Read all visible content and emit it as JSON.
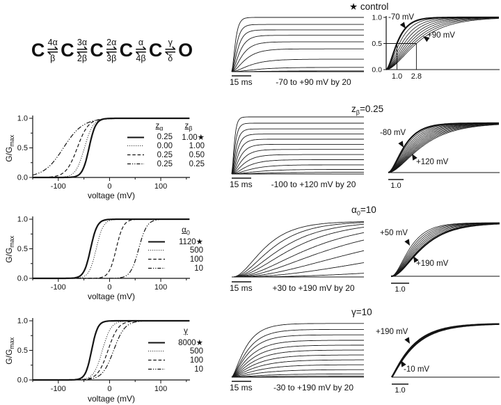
{
  "scheme": {
    "states": [
      "C",
      "C",
      "C",
      "C",
      "C",
      "O"
    ],
    "arrow": "⇌",
    "transitions": [
      {
        "top": "4α",
        "bottom": "β"
      },
      {
        "top": "3α",
        "bottom": "2β"
      },
      {
        "top": "2α",
        "bottom": "3β"
      },
      {
        "top": "α",
        "bottom": "4β"
      },
      {
        "top": "γ",
        "bottom": "δ"
      }
    ]
  },
  "chart_data": {
    "type": "line",
    "description": "Simulated channel activation for the 5-state scheme: G-V curves, current trace families, and normalized activation time courses under parameter changes",
    "rows": [
      {
        "id": "control",
        "title": {
          "base": "★ control",
          "sub": "",
          "rest": ""
        },
        "traces": {
          "scalebar": "15 ms",
          "caption": "-70 to +90 mV by 20",
          "voltages_mV": [
            -70,
            -50,
            -30,
            -10,
            10,
            30,
            50,
            70,
            90
          ],
          "amps": [
            0.015,
            0.08,
            0.23,
            0.42,
            0.55,
            0.67,
            0.77,
            0.87,
            1.0
          ],
          "taus": [
            0.22,
            0.15,
            0.11,
            0.08,
            0.06,
            0.046,
            0.035,
            0.027,
            0.021
          ],
          "power": 2
        },
        "norm": {
          "first_label": "-70 mV",
          "last_label": "+90 mV",
          "halftimes": [
            1.0,
            1.22,
            1.45,
            1.67,
            1.9,
            2.12,
            2.35,
            2.57,
            2.8
          ],
          "power": 2,
          "bold": "first",
          "yticks": [
            "0.0",
            "0.5",
            "1.0"
          ],
          "xrefs": [
            1.0,
            2.8
          ],
          "xref_labels": [
            "1.0",
            "2.8"
          ]
        }
      },
      {
        "id": "zbeta-0.25",
        "title": {
          "base": "z",
          "sub": "β",
          "rest": "=0.25"
        },
        "gv": {
          "ylabel": {
            "base": "G/G",
            "sub": "max"
          },
          "xlabel": "voltage (mV)",
          "xrange": [
            -150,
            157
          ],
          "xticks": [
            -100,
            0,
            100
          ],
          "xtick_labels": [
            "-100",
            "0",
            "100"
          ],
          "yticks": [
            0,
            0.5,
            1
          ],
          "ytick_labels": [
            "0.0",
            "0.5",
            "1.0"
          ],
          "legend": {
            "headers": [
              {
                "base": "z",
                "sub": "α"
              },
              {
                "base": "z",
                "sub": "β"
              }
            ],
            "rows": [
              {
                "style": "solid",
                "c1": "0.25",
                "c2": "1.00★"
              },
              {
                "style": "dotted",
                "c1": "0.00",
                "c2": "1.00"
              },
              {
                "style": "dashed",
                "c1": "0.25",
                "c2": "0.50"
              },
              {
                "style": "dashdot",
                "c1": "0.25",
                "c2": "0.25"
              }
            ]
          },
          "curves": [
            {
              "style": "solid",
              "bold": true,
              "vhalf": -40,
              "slope": 6.5
            },
            {
              "style": "dotted",
              "bold": false,
              "vhalf": -49,
              "slope": 8.5
            },
            {
              "style": "dashed",
              "bold": false,
              "vhalf": -63,
              "slope": 11
            },
            {
              "style": "dashdot",
              "bold": false,
              "vhalf": -90,
              "slope": 19
            }
          ]
        },
        "traces": {
          "scalebar": "15 ms",
          "caption": "-100 to +120 mV by 20",
          "voltages_mV": [
            -100,
            -80,
            -60,
            -40,
            -20,
            0,
            20,
            40,
            60,
            80,
            100,
            120
          ],
          "amps": [
            0.03,
            0.08,
            0.16,
            0.25,
            0.34,
            0.43,
            0.52,
            0.61,
            0.7,
            0.79,
            0.89,
            1.0
          ],
          "taus": [
            0.2,
            0.15,
            0.115,
            0.09,
            0.071,
            0.057,
            0.046,
            0.037,
            0.03,
            0.024,
            0.019,
            0.015
          ],
          "power": 2
        },
        "norm": {
          "first_label": "-80 mV",
          "last_label": "+120 mV",
          "scalebar": "1.0",
          "halftimes": [
            1.0,
            1.1,
            1.2,
            1.3,
            1.4,
            1.5,
            1.6,
            1.7,
            1.8,
            1.9,
            2.0,
            2.1
          ],
          "power": 2,
          "bold": "first"
        }
      },
      {
        "id": "alpha0-10",
        "title": {
          "base": "α",
          "sub": "0",
          "rest": "=10"
        },
        "gv": {
          "ylabel": {
            "base": "G/G",
            "sub": "max"
          },
          "xlabel": "voltage (mV)",
          "xrange": [
            -150,
            157
          ],
          "xticks": [
            -100,
            0,
            100
          ],
          "xtick_labels": [
            "-100",
            "0",
            "100"
          ],
          "yticks": [
            0,
            0.5,
            1
          ],
          "ytick_labels": [
            "0.0",
            "0.5",
            "1.0"
          ],
          "legend": {
            "headers": [
              {
                "base": "α",
                "sub": "0"
              }
            ],
            "rows": [
              {
                "style": "solid",
                "c1": "1120★"
              },
              {
                "style": "dotted",
                "c1": "500"
              },
              {
                "style": "dashed",
                "c1": "100"
              },
              {
                "style": "dashdot",
                "c1": "10"
              }
            ]
          },
          "curves": [
            {
              "style": "solid",
              "bold": true,
              "vhalf": -37,
              "slope": 6.5
            },
            {
              "style": "dotted",
              "bold": false,
              "vhalf": -26,
              "slope": 7
            },
            {
              "style": "dashed",
              "bold": false,
              "vhalf": 13,
              "slope": 7
            },
            {
              "style": "dashdot",
              "bold": false,
              "vhalf": 57,
              "slope": 8
            }
          ]
        },
        "traces": {
          "scalebar": "15 ms",
          "caption": "+30 to +190 mV by 20",
          "voltages_mV": [
            30,
            50,
            70,
            90,
            110,
            130,
            150,
            170,
            190
          ],
          "amps": [
            1,
            1,
            1,
            1,
            1,
            1,
            1,
            1,
            1
          ],
          "taus": [
            2.4,
            1.15,
            0.74,
            0.53,
            0.41,
            0.32,
            0.26,
            0.21,
            0.17
          ],
          "power": 2.5
        },
        "norm": {
          "first_label": "+50 mV",
          "last_label": "+190 mV",
          "scalebar": "1.0",
          "halftimes": [
            1.0,
            1.09,
            1.18,
            1.27,
            1.36,
            1.45,
            1.54,
            1.63
          ],
          "power": 2.2,
          "bold": "last"
        }
      },
      {
        "id": "gamma-10",
        "title": {
          "base": "γ",
          "sub": "",
          "rest": "=10"
        },
        "gv": {
          "ylabel": {
            "base": "G/G",
            "sub": "max"
          },
          "xlabel": "voltage (mV)",
          "xrange": [
            -150,
            157
          ],
          "xticks": [
            -100,
            0,
            100
          ],
          "xtick_labels": [
            "-100",
            "0",
            "100"
          ],
          "yticks": [
            0,
            0.5,
            1
          ],
          "ytick_labels": [
            "0.0",
            "0.5",
            "1.0"
          ],
          "legend": {
            "headers": [
              {
                "base": "γ",
                "sub": ""
              }
            ],
            "rows": [
              {
                "style": "solid",
                "c1": "8000★"
              },
              {
                "style": "dotted",
                "c1": "500"
              },
              {
                "style": "dashed",
                "c1": "100"
              },
              {
                "style": "dashdot",
                "c1": "10"
              }
            ]
          },
          "curves": [
            {
              "style": "solid",
              "bold": true,
              "vhalf": -35,
              "slope": 6
            },
            {
              "style": "dotted",
              "bold": false,
              "vhalf": -14,
              "slope": 8.5
            },
            {
              "style": "dashed",
              "bold": false,
              "vhalf": -3,
              "slope": 10
            },
            {
              "style": "dashdot",
              "bold": false,
              "vhalf": 8,
              "slope": 11
            }
          ]
        },
        "traces": {
          "scalebar": "15 ms",
          "caption": "-30 to +190 mV by 20",
          "voltages_mV": [
            -30,
            -10,
            10,
            30,
            50,
            70,
            90,
            110,
            130,
            150,
            170,
            190
          ],
          "amps": [
            0.02,
            0.06,
            0.14,
            0.23,
            0.32,
            0.41,
            0.5,
            0.59,
            0.68,
            0.78,
            0.88,
            0.99
          ],
          "taus": [
            0.24,
            0.21,
            0.19,
            0.175,
            0.16,
            0.15,
            0.14,
            0.13,
            0.12,
            0.11,
            0.105,
            0.095
          ],
          "power": 1.5
        },
        "norm": {
          "first_label": "+190 mV",
          "last_label": "-10 mV",
          "scalebar": "1.0",
          "halftimes": [
            1.0,
            1.04,
            1.08
          ],
          "power": 1.15,
          "bold": "all"
        }
      }
    ]
  }
}
